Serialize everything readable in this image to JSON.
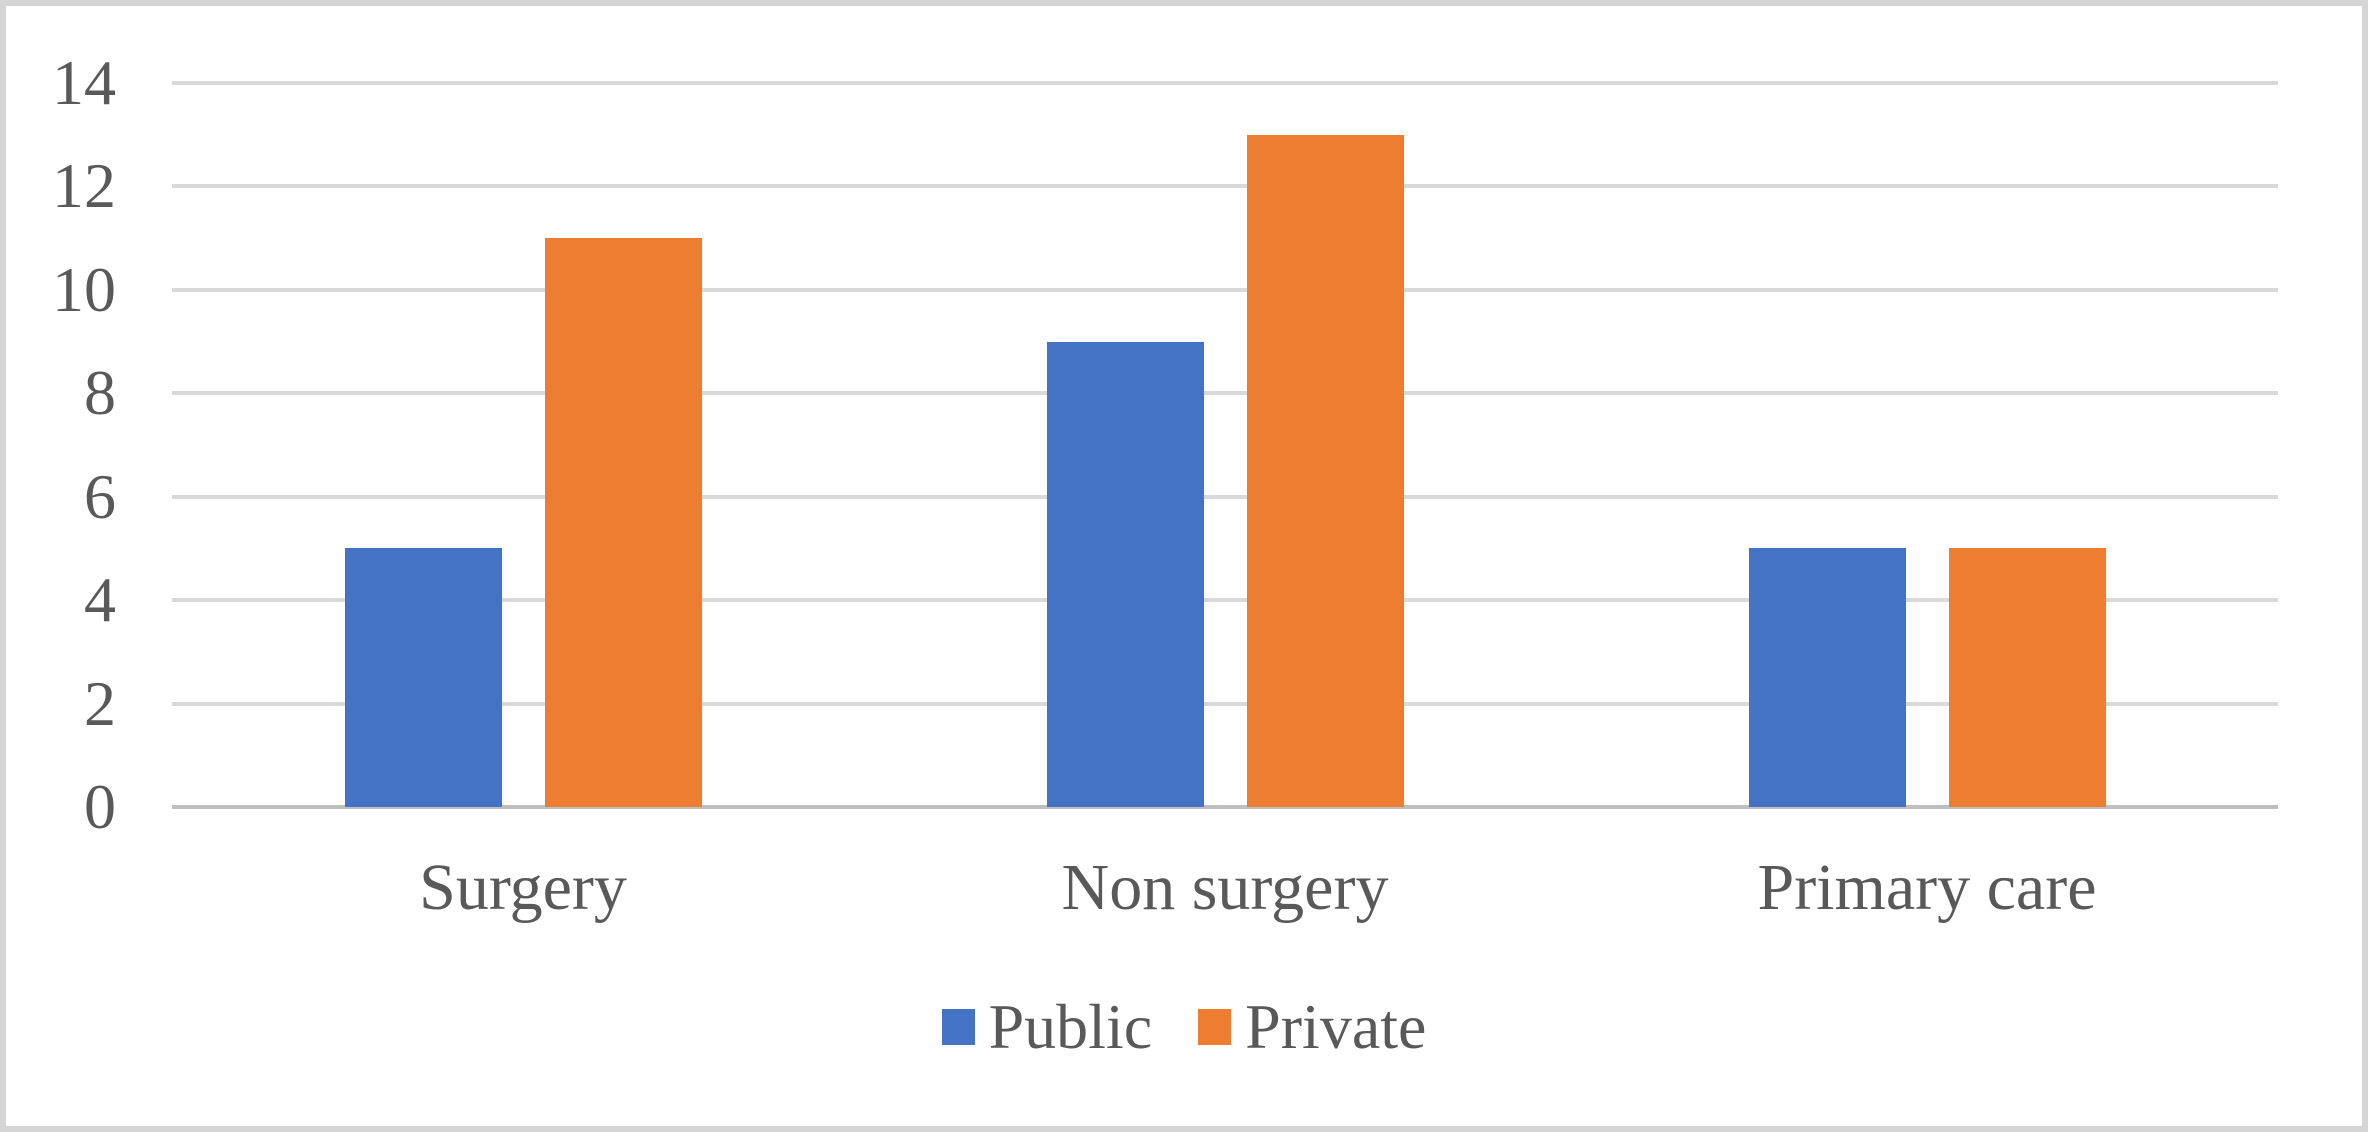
{
  "chart_data": {
    "type": "bar",
    "title": "",
    "xlabel": "",
    "ylabel": "",
    "categories": [
      "Surgery",
      "Non surgery",
      "Primary care"
    ],
    "series": [
      {
        "name": "Public",
        "color": "#4472C4",
        "values": [
          5,
          9,
          5
        ]
      },
      {
        "name": "Private",
        "color": "#ED7D31",
        "values": [
          11,
          13,
          5
        ]
      }
    ],
    "ylim": [
      0,
      14
    ],
    "yticks": [
      0,
      2,
      4,
      6,
      8,
      10,
      12,
      14
    ],
    "grid": true,
    "legend_position": "bottom"
  },
  "colors": {
    "gridline": "#D9D9D9",
    "axis_line": "#BFBFBF",
    "tick_text": "#595959",
    "frame_border": "#D5D5D5",
    "background": "#FFFFFF"
  }
}
